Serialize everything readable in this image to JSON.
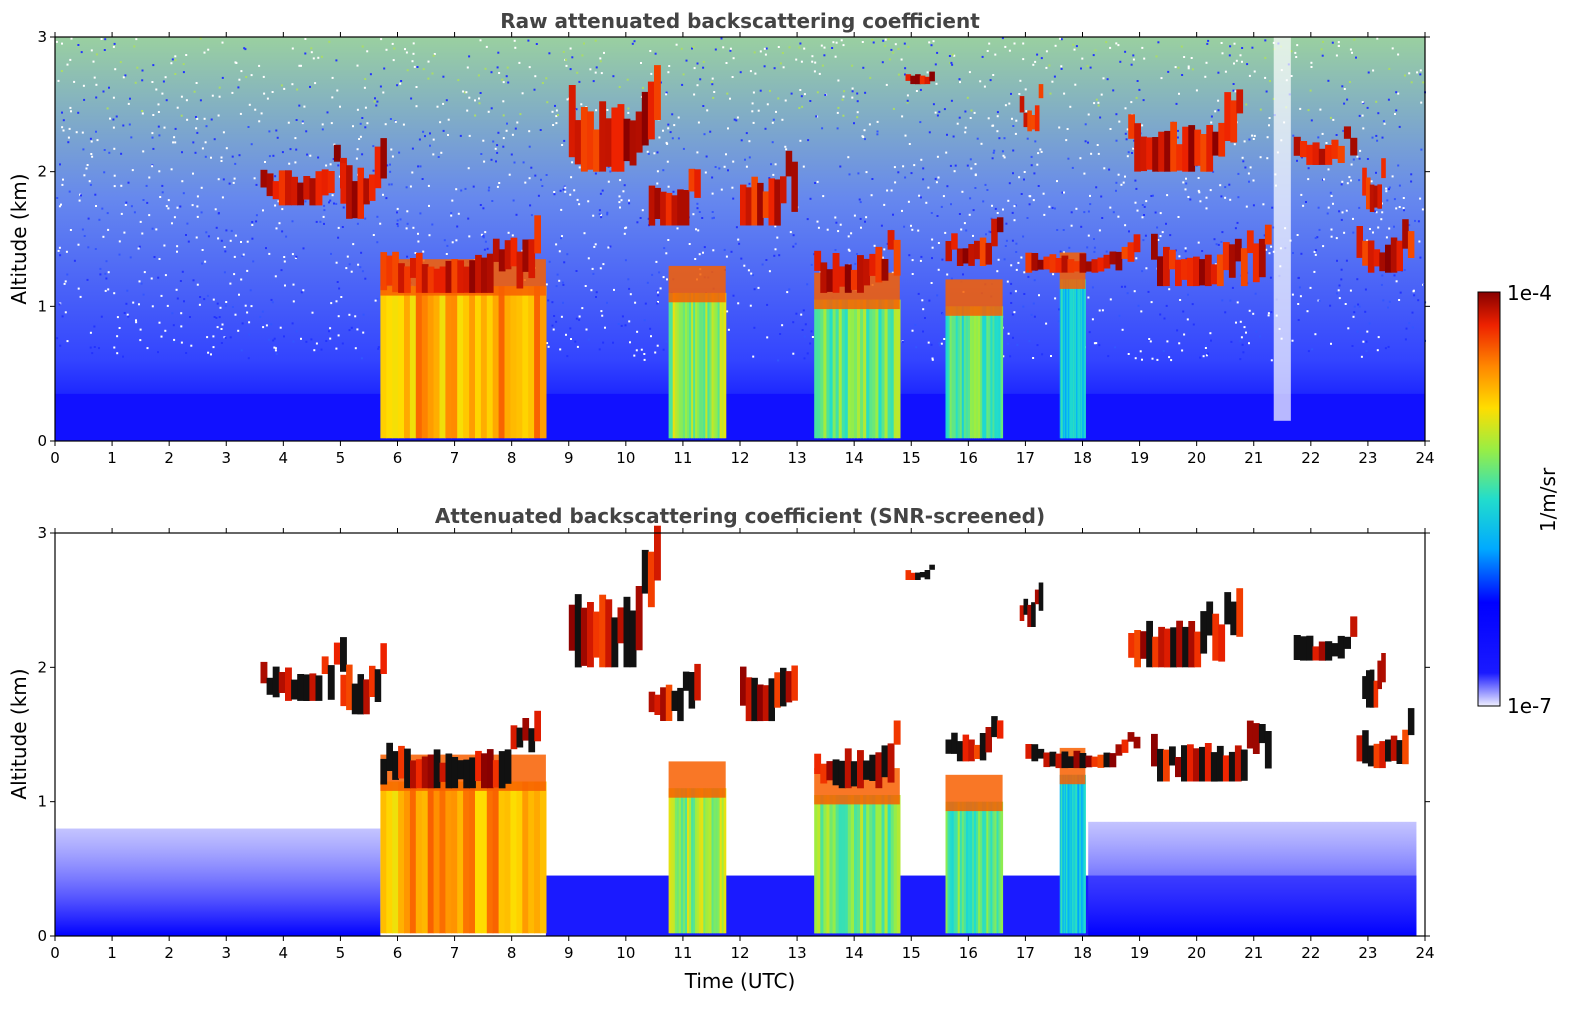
{
  "chart_data": [
    {
      "type": "heatmap",
      "title": "Raw attenuated backscattering coefficient",
      "xlabel": "",
      "ylabel": "Altitude (km)",
      "xlim": [
        0,
        24
      ],
      "ylim": [
        0,
        3
      ],
      "xticks": [
        0,
        1,
        2,
        3,
        4,
        5,
        6,
        7,
        8,
        9,
        10,
        11,
        12,
        13,
        14,
        15,
        16,
        17,
        18,
        19,
        20,
        21,
        22,
        23,
        24
      ],
      "yticks": [
        0,
        1,
        2,
        3
      ],
      "screened": false
    },
    {
      "type": "heatmap",
      "title": "Attenuated backscattering coefficient (SNR-screened)",
      "xlabel": "Time (UTC)",
      "ylabel": "Altitude (km)",
      "xlim": [
        0,
        24
      ],
      "ylim": [
        0,
        3
      ],
      "xticks": [
        0,
        1,
        2,
        3,
        4,
        5,
        6,
        7,
        8,
        9,
        10,
        11,
        12,
        13,
        14,
        15,
        16,
        17,
        18,
        19,
        20,
        21,
        22,
        23,
        24
      ],
      "yticks": [
        0,
        1,
        2,
        3
      ],
      "screened": true
    }
  ],
  "colorbar": {
    "label": "1/m/sr",
    "max_label": "1e-4",
    "min_label": "1e-7",
    "colormap": "jet"
  },
  "features": {
    "precip_columns": [
      {
        "x0": 5.7,
        "x1": 8.6,
        "top": 1.15,
        "level": 0.78
      },
      {
        "x0": 10.75,
        "x1": 11.75,
        "top": 1.1,
        "level": 0.62
      },
      {
        "x0": 13.3,
        "x1": 14.8,
        "top": 1.05,
        "level": 0.58
      },
      {
        "x0": 15.6,
        "x1": 16.6,
        "top": 1.0,
        "level": 0.55
      },
      {
        "x0": 17.6,
        "x1": 18.05,
        "top": 1.2,
        "level": 0.45
      }
    ],
    "cloud_layers": [
      {
        "x0": 5.7,
        "x1": 8.5,
        "y0": 1.1,
        "y1": 1.5
      },
      {
        "x0": 3.6,
        "x1": 5.1,
        "y0": 1.75,
        "y1": 2.1
      },
      {
        "x0": 5.0,
        "x1": 5.8,
        "y0": 1.65,
        "y1": 2.2
      },
      {
        "x0": 9.0,
        "x1": 10.6,
        "y0": 2.0,
        "y1": 2.75
      },
      {
        "x0": 10.4,
        "x1": 11.3,
        "y0": 1.6,
        "y1": 2.0
      },
      {
        "x0": 13.3,
        "x1": 14.8,
        "y0": 1.1,
        "y1": 1.5
      },
      {
        "x0": 12.0,
        "x1": 13.0,
        "y0": 1.6,
        "y1": 2.1
      },
      {
        "x0": 14.9,
        "x1": 15.4,
        "y0": 2.65,
        "y1": 2.75
      },
      {
        "x0": 15.6,
        "x1": 16.6,
        "y0": 1.3,
        "y1": 1.6
      },
      {
        "x0": 16.9,
        "x1": 17.3,
        "y0": 2.3,
        "y1": 2.6
      },
      {
        "x0": 17.0,
        "x1": 19.0,
        "y0": 1.25,
        "y1": 1.45
      },
      {
        "x0": 18.8,
        "x1": 20.8,
        "y0": 2.0,
        "y1": 2.5
      },
      {
        "x0": 19.2,
        "x1": 21.3,
        "y0": 1.15,
        "y1": 1.55
      },
      {
        "x0": 21.7,
        "x1": 22.8,
        "y0": 2.05,
        "y1": 2.3
      },
      {
        "x0": 22.8,
        "x1": 23.8,
        "y0": 1.25,
        "y1": 1.6
      },
      {
        "x0": 22.9,
        "x1": 23.3,
        "y0": 1.7,
        "y1": 2.1
      }
    ]
  }
}
